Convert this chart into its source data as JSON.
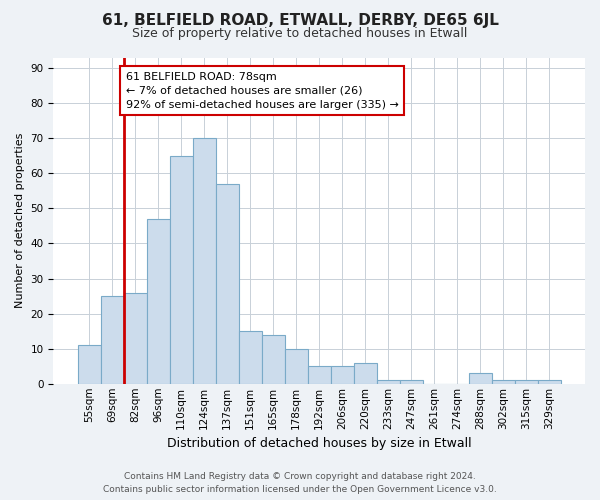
{
  "title": "61, BELFIELD ROAD, ETWALL, DERBY, DE65 6JL",
  "subtitle": "Size of property relative to detached houses in Etwall",
  "xlabel": "Distribution of detached houses by size in Etwall",
  "ylabel": "Number of detached properties",
  "footer_line1": "Contains HM Land Registry data © Crown copyright and database right 2024.",
  "footer_line2": "Contains public sector information licensed under the Open Government Licence v3.0.",
  "categories": [
    "55sqm",
    "69sqm",
    "82sqm",
    "96sqm",
    "110sqm",
    "124sqm",
    "137sqm",
    "151sqm",
    "165sqm",
    "178sqm",
    "192sqm",
    "206sqm",
    "220sqm",
    "233sqm",
    "247sqm",
    "261sqm",
    "274sqm",
    "288sqm",
    "302sqm",
    "315sqm",
    "329sqm"
  ],
  "values": [
    11,
    25,
    26,
    47,
    65,
    70,
    57,
    15,
    14,
    10,
    5,
    5,
    6,
    1,
    1,
    0,
    0,
    3,
    1,
    1,
    1
  ],
  "bar_color": "#ccdcec",
  "bar_edge_color": "#7aaac8",
  "highlight_color": "#cc0000",
  "annotation_line1": "61 BELFIELD ROAD: 78sqm",
  "annotation_line2": "← 7% of detached houses are smaller (26)",
  "annotation_line3": "92% of semi-detached houses are larger (335) →",
  "ylim": [
    0,
    93
  ],
  "yticks": [
    0,
    10,
    20,
    30,
    40,
    50,
    60,
    70,
    80,
    90
  ],
  "background_color": "#eef2f6",
  "plot_bg_color": "#ffffff",
  "grid_color": "#c8d0d8",
  "title_fontsize": 11,
  "subtitle_fontsize": 9,
  "ylabel_fontsize": 8,
  "xlabel_fontsize": 9,
  "tick_fontsize": 7.5,
  "footer_fontsize": 6.5,
  "annotation_fontsize": 8
}
